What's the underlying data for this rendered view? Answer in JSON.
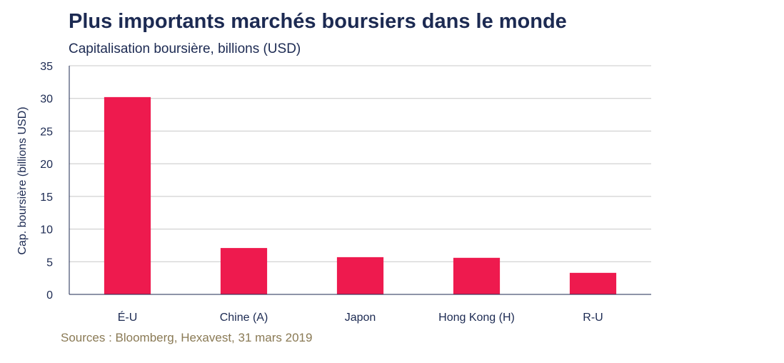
{
  "chart_data": {
    "type": "bar",
    "title": "Plus importants marchés boursiers dans le monde",
    "subtitle": "Capitalisation boursière, billions (USD)",
    "ylabel": "Cap. boursière (billions USD)",
    "xlabel": "",
    "categories": [
      "É-U",
      "Chine (A)",
      "Japon",
      "Hong Kong (H)",
      "R-U"
    ],
    "values": [
      30.2,
      7.1,
      5.7,
      5.6,
      3.3
    ],
    "ylim": [
      0,
      35
    ],
    "yticks": [
      0,
      5,
      10,
      15,
      20,
      25,
      30,
      35
    ],
    "grid": true,
    "bar_color": "#ee1a4e",
    "source": "Sources : Bloomberg, Hexavest, 31 mars 2019"
  }
}
